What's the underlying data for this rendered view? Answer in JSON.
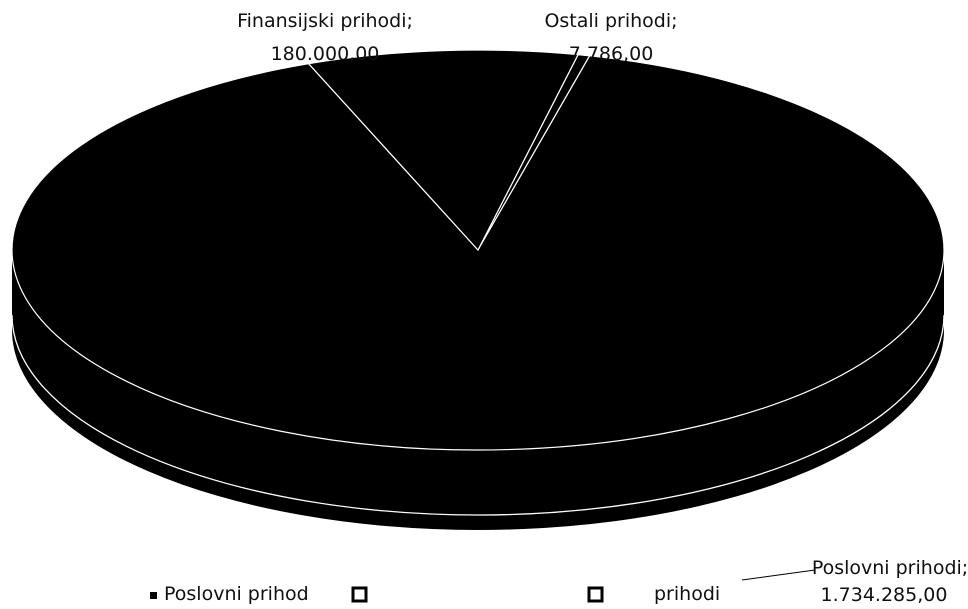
{
  "chart_data": {
    "type": "pie",
    "style": "3d",
    "slices": [
      {
        "name": "Poslovni prihodi",
        "value": 1734285.0,
        "label_line1": "Poslovni prihodi;",
        "label_line2": "1.734.285,00"
      },
      {
        "name": "Finansijski prihodi",
        "value": 180000.0,
        "label_line1": "Finansijski prihodi;",
        "label_line2": "180.000,00"
      },
      {
        "name": "Ostali prihodi",
        "value": 7786.0,
        "label_line1": "Ostali prihodi;",
        "label_line2": "7.786,00"
      }
    ],
    "legend": {
      "placement": "bottom",
      "items": [
        "Poslovni prihodi",
        "Finansijski prihodi",
        "Ostali prihodi"
      ],
      "visible_fragments": [
        "Poslovni prihod",
        "",
        "prihodi"
      ]
    },
    "colors": {
      "slice_fill": "#000000",
      "separator": "#ffffff",
      "background": "#ffffff"
    }
  }
}
